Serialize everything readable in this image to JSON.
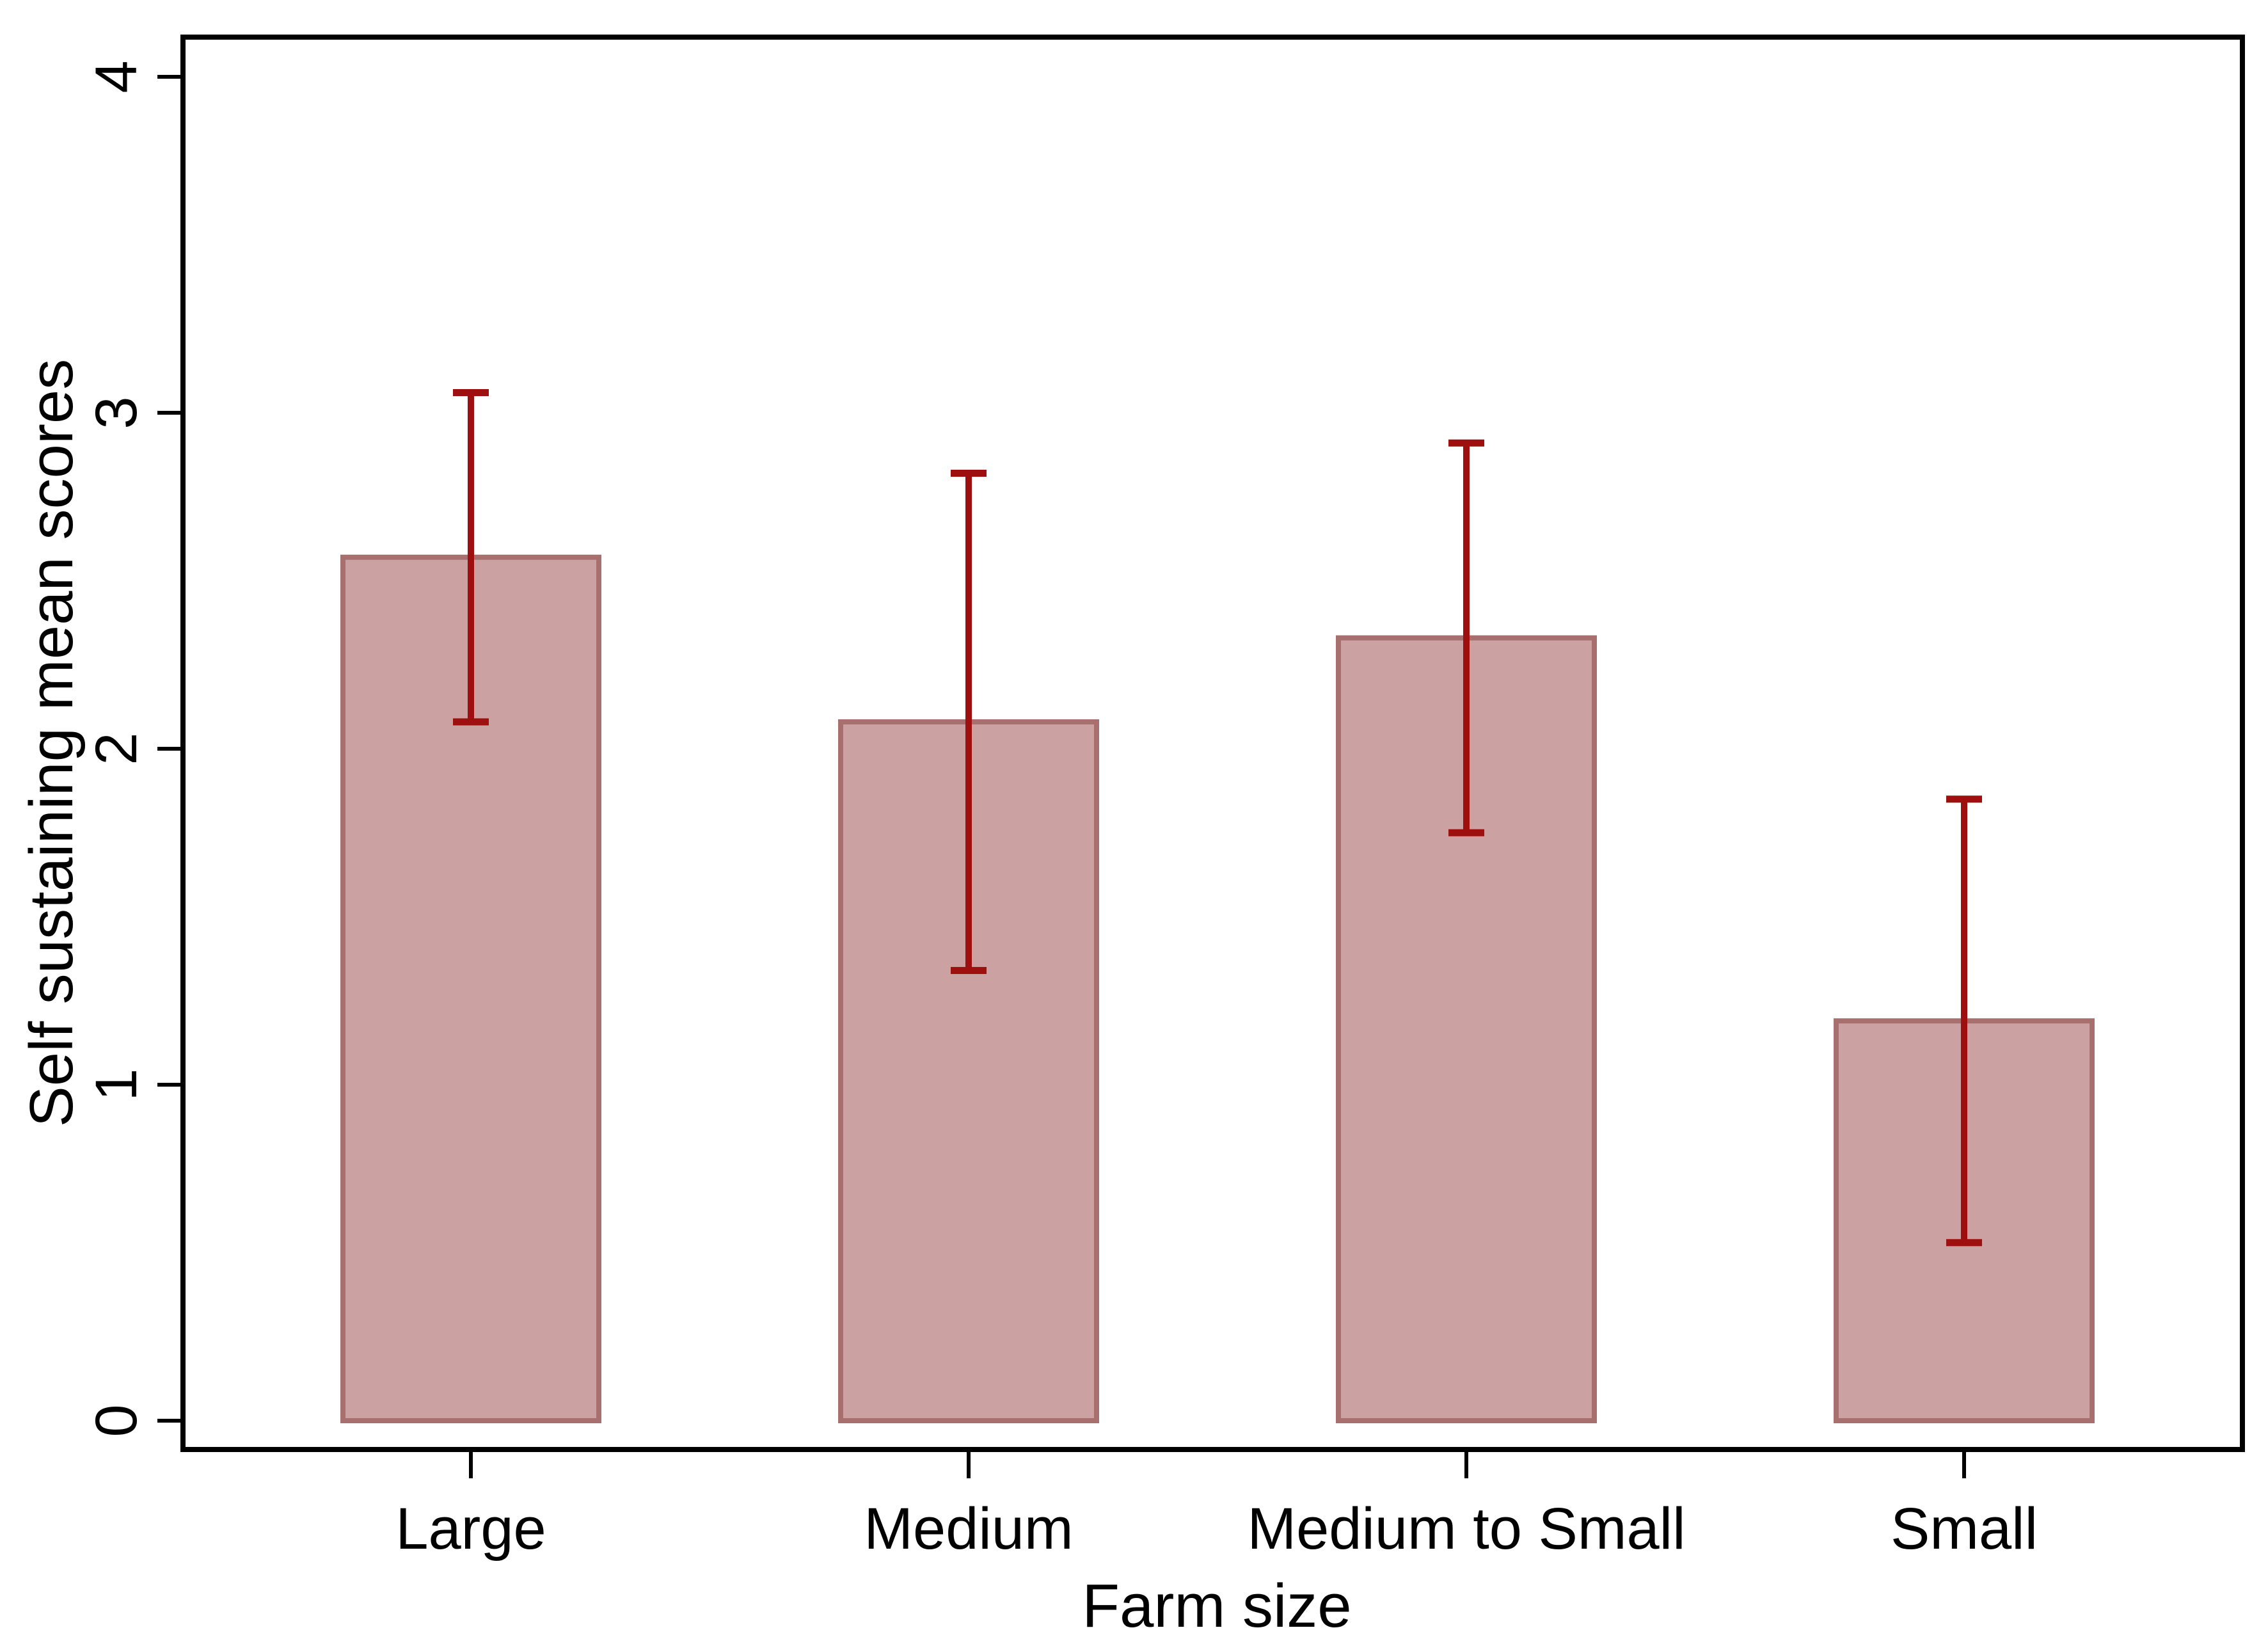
{
  "chart_data": {
    "type": "bar",
    "title": "",
    "xlabel": "Farm size",
    "ylabel": "Self sustaining mean scores",
    "categories": [
      "Large",
      "Medium",
      "Medium to Small",
      "Small"
    ],
    "values": [
      2.57,
      2.08,
      2.33,
      1.19
    ],
    "error_bars": {
      "low": [
        2.08,
        1.34,
        1.75,
        0.53
      ],
      "high": [
        3.06,
        2.82,
        2.91,
        1.85
      ]
    },
    "yticks": [
      "0",
      "1",
      "2",
      "3",
      "4"
    ],
    "ytick_values": [
      0,
      1,
      2,
      3,
      4
    ],
    "ylim": [
      0,
      4.12
    ],
    "grid": false,
    "legend": null,
    "tick_label_angle": 90,
    "colors": {
      "bar_fill": "#cba1a1",
      "bar_border": "#a86f6f",
      "error_bar": "#9e0f0f",
      "axis": "#000000",
      "text": "#000000",
      "background": "#ffffff"
    }
  }
}
